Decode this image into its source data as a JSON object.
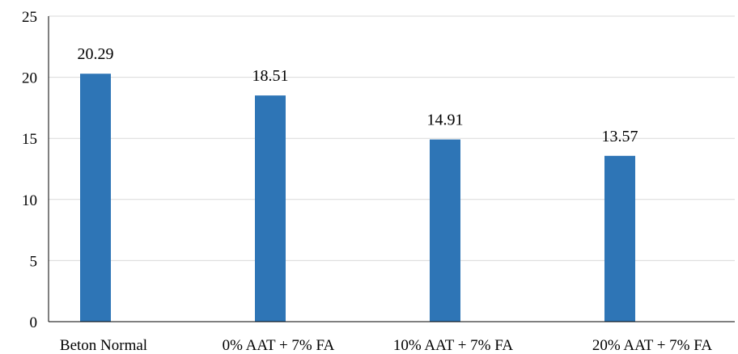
{
  "chart_data": {
    "type": "bar",
    "title": "",
    "xlabel": "",
    "ylabel": "",
    "categories": [
      "Beton Normal",
      "0% AAT + 7% FA",
      "10% AAT + 7% FA",
      "20% AAT + 7% FA"
    ],
    "values": [
      20.29,
      18.51,
      14.91,
      13.57
    ],
    "value_labels": [
      "20.29",
      "18.51",
      "14.91",
      "13.57"
    ],
    "ylim": [
      0,
      25
    ],
    "yticks": [
      0,
      5,
      10,
      15,
      20,
      25
    ],
    "ytick_labels": [
      "0",
      "5",
      "10",
      "15",
      "20",
      "25"
    ],
    "grid": true,
    "legend": "none",
    "colors": {
      "bar": "#2E75B6",
      "grid": "#D9D9D9",
      "axis": "#000000"
    }
  }
}
